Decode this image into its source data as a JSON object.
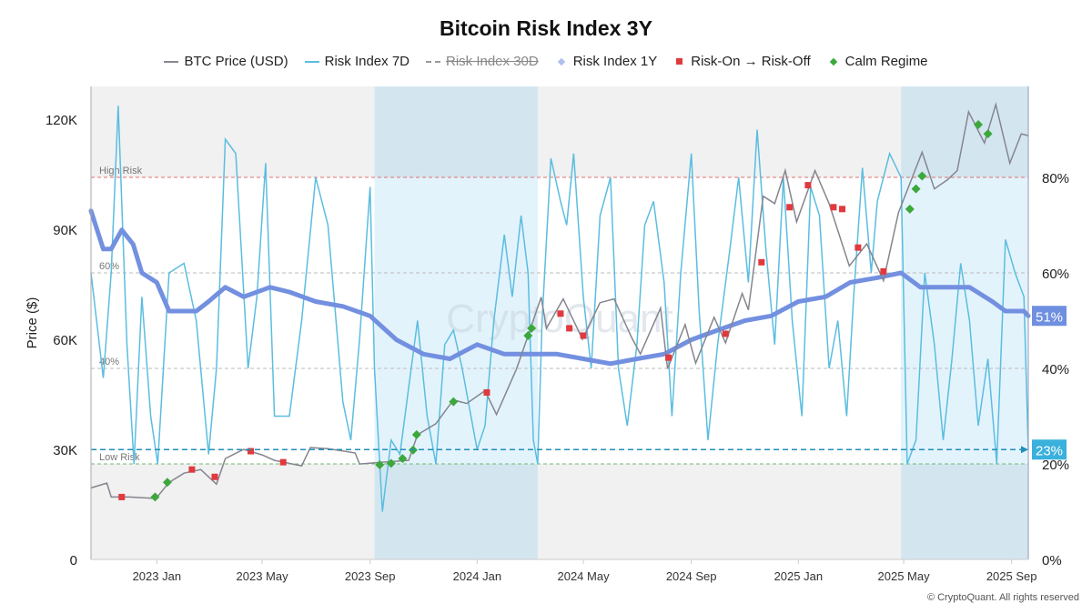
{
  "chart_data": {
    "type": "line",
    "title": "Bitcoin Risk Index 3Y",
    "ylabel": "Price ($)",
    "ylim": [
      0,
      130000
    ],
    "y2lim": [
      0,
      100
    ],
    "xlim": [
      "2022-10-18",
      "2025-09-20"
    ],
    "x_ticks": [
      {
        "date": "2023-01-01",
        "label": "2023 Jan"
      },
      {
        "date": "2023-05-01",
        "label": "2023 May"
      },
      {
        "date": "2023-09-01",
        "label": "2023 Sep"
      },
      {
        "date": "2024-01-01",
        "label": "2024 Jan"
      },
      {
        "date": "2024-05-01",
        "label": "2024 May"
      },
      {
        "date": "2024-09-01",
        "label": "2024 Sep"
      },
      {
        "date": "2025-01-01",
        "label": "2025 Jan"
      },
      {
        "date": "2025-05-01",
        "label": "2025 May"
      },
      {
        "date": "2025-09-01",
        "label": "2025 Sep"
      }
    ],
    "y_ticks": [
      {
        "v": 0,
        "label": "0"
      },
      {
        "v": 30000,
        "label": "30K"
      },
      {
        "v": 60000,
        "label": "60K"
      },
      {
        "v": 90000,
        "label": "90K"
      },
      {
        "v": 120000,
        "label": "120K"
      }
    ],
    "y2_ticks": [
      {
        "v": 0,
        "label": "0%"
      },
      {
        "v": 20,
        "label": "20%"
      },
      {
        "v": 40,
        "label": "40%"
      },
      {
        "v": 60,
        "label": "60%"
      },
      {
        "v": 80,
        "label": "80%"
      }
    ],
    "legend": [
      {
        "name": "BTC Price (USD)",
        "color": "#888890",
        "kind": "line"
      },
      {
        "name": "Risk Index 7D",
        "color": "#5bbde0",
        "kind": "line"
      },
      {
        "name": "Risk Index 30D",
        "color": "#999999",
        "kind": "dashed-hidden"
      },
      {
        "name": "Risk Index 1Y",
        "color": "#7390e0",
        "kind": "point"
      },
      {
        "name": "Risk-On → Risk-Off",
        "color": "#e0393e",
        "kind": "square"
      },
      {
        "name": "Calm Regime",
        "color": "#3ca83c",
        "kind": "diamond"
      }
    ],
    "reference_lines": [
      {
        "v": 80,
        "label": "High Risk",
        "color": "#e07070"
      },
      {
        "v": 60,
        "label": "60%",
        "color": "#bbbbbb"
      },
      {
        "v": 40,
        "label": "40%",
        "color": "#bbbbbb"
      },
      {
        "v": 20,
        "label": "Low Risk",
        "color": "#70b870"
      }
    ],
    "current": {
      "risk_1y": {
        "value": 51,
        "label": "51%",
        "color": "#6f8fe0"
      },
      "risk_7d": {
        "value": 23,
        "label": "23%",
        "color": "#3ab0dc"
      }
    },
    "shaded_periods": [
      [
        "2023-09-06",
        "2024-03-10"
      ],
      [
        "2025-04-28",
        "2025-09-20"
      ]
    ],
    "series": [
      {
        "name": "BTC Price (USD)",
        "axis": "left",
        "points": [
          [
            "2022-10-18",
            19500
          ],
          [
            "2022-11-05",
            20800
          ],
          [
            "2022-11-10",
            17000
          ],
          [
            "2022-12-01",
            17000
          ],
          [
            "2022-12-31",
            16600
          ],
          [
            "2023-01-15",
            21000
          ],
          [
            "2023-02-01",
            23500
          ],
          [
            "2023-02-20",
            24500
          ],
          [
            "2023-03-10",
            20500
          ],
          [
            "2023-03-20",
            27500
          ],
          [
            "2023-04-10",
            30000
          ],
          [
            "2023-05-01",
            28500
          ],
          [
            "2023-05-15",
            27000
          ],
          [
            "2023-06-15",
            25500
          ],
          [
            "2023-06-25",
            30500
          ],
          [
            "2023-07-15",
            30200
          ],
          [
            "2023-08-15",
            29000
          ],
          [
            "2023-08-20",
            26000
          ],
          [
            "2023-09-15",
            26500
          ],
          [
            "2023-10-15",
            27000
          ],
          [
            "2023-10-25",
            34000
          ],
          [
            "2023-11-15",
            37000
          ],
          [
            "2023-12-05",
            43500
          ],
          [
            "2023-12-20",
            42500
          ],
          [
            "2024-01-10",
            46000
          ],
          [
            "2024-01-23",
            39500
          ],
          [
            "2024-02-15",
            52000
          ],
          [
            "2024-02-28",
            61000
          ],
          [
            "2024-03-14",
            71500
          ],
          [
            "2024-03-20",
            63000
          ],
          [
            "2024-04-08",
            71000
          ],
          [
            "2024-04-30",
            60000
          ],
          [
            "2024-05-20",
            70000
          ],
          [
            "2024-06-05",
            71000
          ],
          [
            "2024-06-25",
            60500
          ],
          [
            "2024-07-05",
            56000
          ],
          [
            "2024-07-28",
            68500
          ],
          [
            "2024-08-05",
            52000
          ],
          [
            "2024-08-25",
            64000
          ],
          [
            "2024-09-06",
            53500
          ],
          [
            "2024-09-27",
            66000
          ],
          [
            "2024-10-10",
            59000
          ],
          [
            "2024-10-29",
            72500
          ],
          [
            "2024-11-05",
            68000
          ],
          [
            "2024-11-22",
            99000
          ],
          [
            "2024-12-05",
            97000
          ],
          [
            "2024-12-17",
            106000
          ],
          [
            "2024-12-30",
            92000
          ],
          [
            "2025-01-20",
            106000
          ],
          [
            "2025-02-05",
            97000
          ],
          [
            "2025-02-28",
            80000
          ],
          [
            "2025-03-20",
            86000
          ],
          [
            "2025-04-08",
            76000
          ],
          [
            "2025-04-25",
            94500
          ],
          [
            "2025-05-22",
            111000
          ],
          [
            "2025-06-05",
            101000
          ],
          [
            "2025-06-20",
            103500
          ],
          [
            "2025-07-01",
            106000
          ],
          [
            "2025-07-14",
            122000
          ],
          [
            "2025-08-01",
            113500
          ],
          [
            "2025-08-14",
            124000
          ],
          [
            "2025-08-30",
            108000
          ],
          [
            "2025-09-12",
            116000
          ],
          [
            "2025-09-20",
            115500
          ]
        ]
      },
      {
        "name": "Risk Index 7D",
        "axis": "right",
        "points": [
          [
            "2022-10-18",
            60
          ],
          [
            "2022-11-01",
            38
          ],
          [
            "2022-11-10",
            60
          ],
          [
            "2022-11-18",
            95
          ],
          [
            "2022-11-28",
            45
          ],
          [
            "2022-12-06",
            20
          ],
          [
            "2022-12-15",
            55
          ],
          [
            "2022-12-25",
            30
          ],
          [
            "2023-01-02",
            20
          ],
          [
            "2023-01-15",
            60
          ],
          [
            "2023-02-01",
            62
          ],
          [
            "2023-02-15",
            50
          ],
          [
            "2023-03-01",
            22
          ],
          [
            "2023-03-10",
            40
          ],
          [
            "2023-03-20",
            88
          ],
          [
            "2023-04-01",
            85
          ],
          [
            "2023-04-15",
            40
          ],
          [
            "2023-04-25",
            55
          ],
          [
            "2023-05-05",
            83
          ],
          [
            "2023-05-15",
            30
          ],
          [
            "2023-06-01",
            30
          ],
          [
            "2023-06-15",
            50
          ],
          [
            "2023-07-01",
            80
          ],
          [
            "2023-07-15",
            70
          ],
          [
            "2023-08-01",
            33
          ],
          [
            "2023-08-10",
            25
          ],
          [
            "2023-08-20",
            46
          ],
          [
            "2023-09-01",
            78
          ],
          [
            "2023-09-06",
            40
          ],
          [
            "2023-09-15",
            10
          ],
          [
            "2023-09-25",
            25
          ],
          [
            "2023-10-05",
            22
          ],
          [
            "2023-10-15",
            36
          ],
          [
            "2023-10-25",
            50
          ],
          [
            "2023-11-05",
            30
          ],
          [
            "2023-11-15",
            20
          ],
          [
            "2023-11-25",
            45
          ],
          [
            "2023-12-05",
            48
          ],
          [
            "2023-12-15",
            40
          ],
          [
            "2024-01-01",
            23
          ],
          [
            "2024-01-10",
            28
          ],
          [
            "2024-01-20",
            50
          ],
          [
            "2024-02-01",
            68
          ],
          [
            "2024-02-10",
            55
          ],
          [
            "2024-02-20",
            72
          ],
          [
            "2024-02-28",
            60
          ],
          [
            "2024-03-05",
            25
          ],
          [
            "2024-03-10",
            20
          ],
          [
            "2024-03-15",
            50
          ],
          [
            "2024-03-25",
            84
          ],
          [
            "2024-04-05",
            75
          ],
          [
            "2024-04-12",
            70
          ],
          [
            "2024-04-20",
            85
          ],
          [
            "2024-05-01",
            55
          ],
          [
            "2024-05-10",
            40
          ],
          [
            "2024-05-20",
            72
          ],
          [
            "2024-06-01",
            80
          ],
          [
            "2024-06-10",
            40
          ],
          [
            "2024-06-20",
            28
          ],
          [
            "2024-07-01",
            45
          ],
          [
            "2024-07-10",
            70
          ],
          [
            "2024-07-20",
            75
          ],
          [
            "2024-08-01",
            58
          ],
          [
            "2024-08-10",
            30
          ],
          [
            "2024-08-20",
            60
          ],
          [
            "2024-09-01",
            85
          ],
          [
            "2024-09-10",
            52
          ],
          [
            "2024-09-20",
            25
          ],
          [
            "2024-10-01",
            45
          ],
          [
            "2024-10-15",
            65
          ],
          [
            "2024-10-25",
            80
          ],
          [
            "2024-11-05",
            58
          ],
          [
            "2024-11-15",
            90
          ],
          [
            "2024-11-25",
            65
          ],
          [
            "2024-12-05",
            45
          ],
          [
            "2024-12-15",
            80
          ],
          [
            "2024-12-25",
            50
          ],
          [
            "2025-01-05",
            30
          ],
          [
            "2025-01-15",
            78
          ],
          [
            "2025-01-25",
            72
          ],
          [
            "2025-02-05",
            40
          ],
          [
            "2025-02-15",
            50
          ],
          [
            "2025-02-25",
            30
          ],
          [
            "2025-03-05",
            55
          ],
          [
            "2025-03-15",
            82
          ],
          [
            "2025-03-25",
            60
          ],
          [
            "2025-04-01",
            75
          ],
          [
            "2025-04-15",
            85
          ],
          [
            "2025-04-28",
            80
          ],
          [
            "2025-05-05",
            20
          ],
          [
            "2025-05-15",
            25
          ],
          [
            "2025-05-25",
            60
          ],
          [
            "2025-06-05",
            45
          ],
          [
            "2025-06-15",
            25
          ],
          [
            "2025-06-25",
            42
          ],
          [
            "2025-07-05",
            62
          ],
          [
            "2025-07-15",
            50
          ],
          [
            "2025-07-25",
            28
          ],
          [
            "2025-08-05",
            42
          ],
          [
            "2025-08-15",
            20
          ],
          [
            "2025-08-25",
            67
          ],
          [
            "2025-09-05",
            60
          ],
          [
            "2025-09-15",
            55
          ],
          [
            "2025-09-20",
            23
          ]
        ]
      },
      {
        "name": "Risk Index 1Y",
        "axis": "right",
        "points": [
          [
            "2022-10-18",
            73
          ],
          [
            "2022-11-01",
            65
          ],
          [
            "2022-11-10",
            65
          ],
          [
            "2022-11-22",
            69
          ],
          [
            "2022-12-05",
            66
          ],
          [
            "2022-12-15",
            60
          ],
          [
            "2023-01-01",
            58
          ],
          [
            "2023-01-15",
            52
          ],
          [
            "2023-02-15",
            52
          ],
          [
            "2023-03-01",
            54
          ],
          [
            "2023-03-20",
            57
          ],
          [
            "2023-04-10",
            55
          ],
          [
            "2023-05-10",
            57
          ],
          [
            "2023-06-01",
            56
          ],
          [
            "2023-07-01",
            54
          ],
          [
            "2023-08-01",
            53
          ],
          [
            "2023-09-01",
            51
          ],
          [
            "2023-10-01",
            46
          ],
          [
            "2023-11-01",
            43
          ],
          [
            "2023-12-01",
            42
          ],
          [
            "2024-01-01",
            45
          ],
          [
            "2024-02-01",
            43
          ],
          [
            "2024-03-01",
            43
          ],
          [
            "2024-04-01",
            43
          ],
          [
            "2024-05-01",
            42
          ],
          [
            "2024-06-01",
            41
          ],
          [
            "2024-07-01",
            42
          ],
          [
            "2024-08-01",
            43
          ],
          [
            "2024-09-01",
            46
          ],
          [
            "2024-10-01",
            48
          ],
          [
            "2024-11-01",
            50
          ],
          [
            "2024-12-01",
            51
          ],
          [
            "2025-01-01",
            54
          ],
          [
            "2025-02-01",
            55
          ],
          [
            "2025-03-01",
            58
          ],
          [
            "2025-04-01",
            59
          ],
          [
            "2025-04-28",
            60
          ],
          [
            "2025-05-20",
            57
          ],
          [
            "2025-06-15",
            57
          ],
          [
            "2025-07-15",
            57
          ],
          [
            "2025-08-10",
            54
          ],
          [
            "2025-08-25",
            52
          ],
          [
            "2025-09-15",
            52
          ],
          [
            "2025-09-20",
            51
          ]
        ]
      }
    ],
    "risk_on_off_events": [
      [
        "2022-11-22",
        17000
      ],
      [
        "2023-02-10",
        24500
      ],
      [
        "2023-03-08",
        22500
      ],
      [
        "2023-04-18",
        29500
      ],
      [
        "2023-05-25",
        26500
      ],
      [
        "2024-01-12",
        45500
      ],
      [
        "2024-04-05",
        67000
      ],
      [
        "2024-04-15",
        63000
      ],
      [
        "2024-05-01",
        61000
      ],
      [
        "2024-08-06",
        55000
      ],
      [
        "2024-10-10",
        61500
      ],
      [
        "2024-11-20",
        81000
      ],
      [
        "2024-12-22",
        96000
      ],
      [
        "2025-01-12",
        102000
      ],
      [
        "2025-02-10",
        96000
      ],
      [
        "2025-02-20",
        95500
      ],
      [
        "2025-03-10",
        85000
      ],
      [
        "2025-04-08",
        78500
      ]
    ],
    "calm_regime_events": [
      [
        "2022-12-30",
        17000
      ],
      [
        "2023-01-13",
        21000
      ],
      [
        "2023-09-12",
        25800
      ],
      [
        "2023-09-25",
        26200
      ],
      [
        "2023-10-08",
        27500
      ],
      [
        "2023-10-20",
        29800
      ],
      [
        "2023-10-24",
        34000
      ],
      [
        "2023-12-05",
        43000
      ],
      [
        "2024-02-28",
        61000
      ],
      [
        "2024-03-03",
        63000
      ],
      [
        "2025-05-08",
        95500
      ],
      [
        "2025-05-15",
        101000
      ],
      [
        "2025-05-22",
        104500
      ],
      [
        "2025-07-25",
        118500
      ],
      [
        "2025-08-05",
        116000
      ]
    ]
  },
  "watermark": "CryptoQuant",
  "footer": "© CryptoQuant. All rights reserved"
}
